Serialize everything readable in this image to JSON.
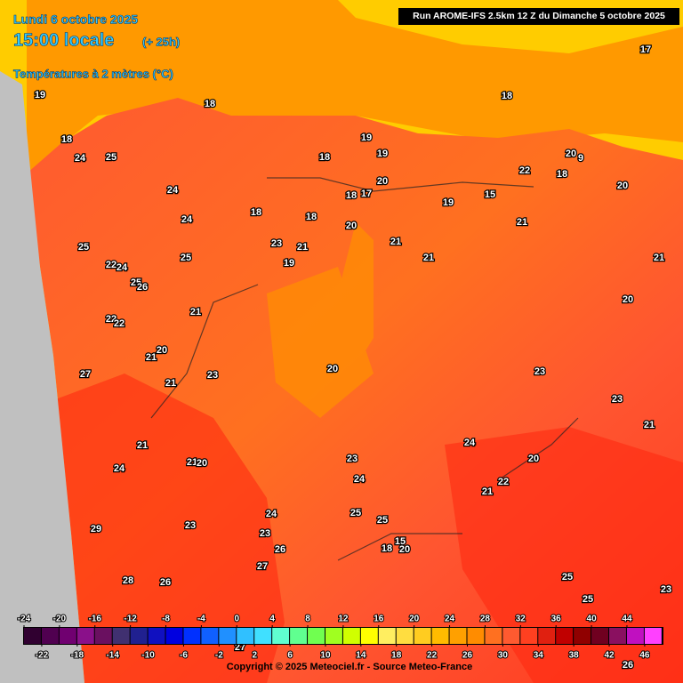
{
  "header": {
    "date": "Lundi 6 octobre 2025",
    "time": "15:00 locale",
    "lead": "(+ 25h)",
    "field": "Températures à 2 mètres (°C)"
  },
  "run": "Run AROME-IFS 2.5km 12 Z du Dimanche 5 octobre 2025",
  "map_labels": [
    19,
    18,
    18,
    17,
    18,
    24,
    25,
    19,
    18,
    19,
    20,
    9,
    22,
    18,
    20,
    20,
    18,
    17,
    15,
    19,
    24,
    24,
    18,
    18,
    20,
    21,
    21,
    23,
    21,
    25,
    21,
    21,
    25,
    22,
    24,
    19,
    25,
    26,
    20,
    22,
    22,
    21,
    20,
    21,
    20,
    23,
    27,
    23,
    21,
    23,
    21,
    24,
    21,
    23,
    20,
    21,
    20,
    24,
    24,
    22,
    21,
    24,
    25,
    25,
    23,
    29,
    23,
    15,
    18,
    20,
    26,
    27,
    28,
    26,
    25,
    25,
    23,
    27,
    26
  ],
  "colorbar": {
    "top_ticks": [
      -24,
      -20,
      -16,
      -12,
      -8,
      -4,
      0,
      4,
      8,
      12,
      16,
      20,
      24,
      28,
      32,
      36,
      40,
      44
    ],
    "bottom_ticks": [
      -22,
      -18,
      -14,
      -10,
      -6,
      -2,
      2,
      6,
      10,
      14,
      18,
      22,
      26,
      30,
      34,
      38,
      42,
      46
    ]
  },
  "copyright": "Copyright © 2025 Meteociel.fr - Source Meteo-France"
}
